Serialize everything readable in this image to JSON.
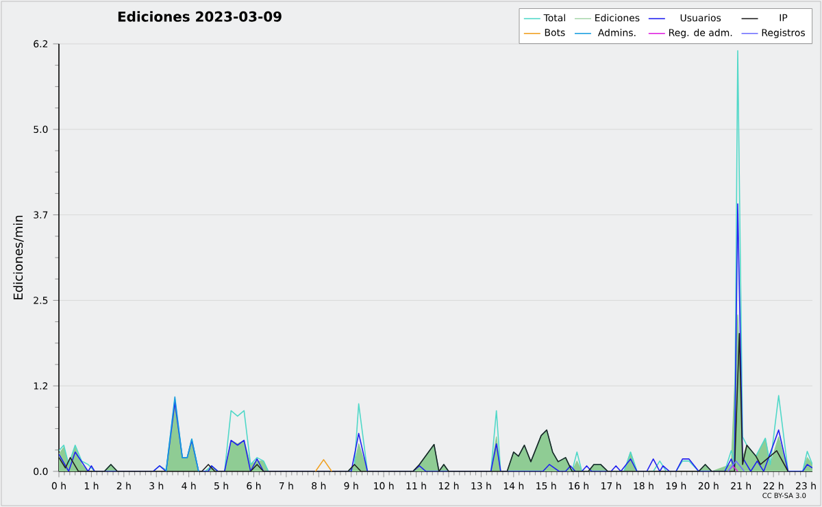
{
  "chart_data": {
    "type": "line",
    "title": "Ediciones 2023-03-09",
    "ylabel": "Ediciones/min",
    "annotations": [
      "CC BY-SA 3.0"
    ],
    "xlim": [
      0,
      23.2
    ],
    "ylim": [
      0,
      6.2
    ],
    "grid": "y",
    "legend": "top right",
    "xticks": [
      {
        "value": 0,
        "label": "0 h"
      },
      {
        "value": 1,
        "label": "1 h"
      },
      {
        "value": 2,
        "label": "2 h"
      },
      {
        "value": 3,
        "label": "3 h"
      },
      {
        "value": 4,
        "label": "4 h"
      },
      {
        "value": 5,
        "label": "5 h"
      },
      {
        "value": 6,
        "label": "6 h"
      },
      {
        "value": 7,
        "label": "7 h"
      },
      {
        "value": 8,
        "label": "8 h"
      },
      {
        "value": 9,
        "label": "9 h"
      },
      {
        "value": 10,
        "label": "10 h"
      },
      {
        "value": 11,
        "label": "11 h"
      },
      {
        "value": 12,
        "label": "12 h"
      },
      {
        "value": 13,
        "label": "13 h"
      },
      {
        "value": 14,
        "label": "14 h"
      },
      {
        "value": 15,
        "label": "15 h"
      },
      {
        "value": 16,
        "label": "16 h"
      },
      {
        "value": 17,
        "label": "17 h"
      },
      {
        "value": 18,
        "label": "18 h"
      },
      {
        "value": 19,
        "label": "19 h"
      },
      {
        "value": 20,
        "label": "20 h"
      },
      {
        "value": 21,
        "label": "21 h"
      },
      {
        "value": 22,
        "label": "22 h"
      },
      {
        "value": 23,
        "label": "23 h"
      }
    ],
    "yticks": [
      {
        "value": 0,
        "label": "0.0"
      },
      {
        "value": 1.24,
        "label": "1.2"
      },
      {
        "value": 2.48,
        "label": "2.5"
      },
      {
        "value": 3.72,
        "label": "3.7"
      },
      {
        "value": 4.96,
        "label": "5.0"
      },
      {
        "value": 6.2,
        "label": "6.2"
      }
    ],
    "series": [
      {
        "name": "Total",
        "type": "line",
        "color": "#50d8c8",
        "x": [
          0,
          0.15,
          0.3,
          0.5,
          0.7,
          0.9,
          1.1,
          1.4,
          1.6,
          1.8,
          2.9,
          3.1,
          3.3,
          3.57,
          3.8,
          3.95,
          4.09,
          4.3,
          4.5,
          4.7,
          4.9,
          5.1,
          5.3,
          5.5,
          5.7,
          5.9,
          6.1,
          6.3,
          6.45,
          7.9,
          8.4,
          8.9,
          9.1,
          9.23,
          9.5,
          10.9,
          11.1,
          11.55,
          11.7,
          11.85,
          12.0,
          13.3,
          13.47,
          13.6,
          13.8,
          14.0,
          14.15,
          14.33,
          14.53,
          14.85,
          15.02,
          15.2,
          15.37,
          15.6,
          15.8,
          15.95,
          16.1,
          16.3,
          16.47,
          16.68,
          16.9,
          17.4,
          17.6,
          17.8,
          18.3,
          18.5,
          18.7,
          19.0,
          19.2,
          19.4,
          19.7,
          19.9,
          20.1,
          20.5,
          20.7,
          20.8,
          20.9,
          21.05,
          21.18,
          21.46,
          21.75,
          21.9,
          22.16,
          22.45,
          22.9,
          23.04,
          23.2
        ],
        "values": [
          0.3,
          0.38,
          0.1,
          0.38,
          0.15,
          0.1,
          0,
          0,
          0.1,
          0,
          0,
          0.08,
          0.02,
          1.05,
          0.2,
          0.2,
          0.47,
          0,
          0,
          0.08,
          0,
          0,
          0.88,
          0.8,
          0.88,
          0.1,
          0.2,
          0.15,
          0,
          0,
          0,
          0,
          0.1,
          0.98,
          0,
          0,
          0.1,
          0.39,
          0,
          0.1,
          0,
          0,
          0.88,
          0,
          0,
          0.28,
          0.22,
          0.38,
          0.14,
          0.52,
          0.6,
          0.28,
          0.14,
          0.2,
          0,
          0.28,
          0,
          0,
          0.1,
          0.1,
          0,
          0,
          0.28,
          0,
          0,
          0.15,
          0,
          0,
          0.15,
          0.15,
          0,
          0.1,
          0,
          0,
          0.3,
          0.15,
          6.1,
          0.5,
          0.38,
          0.22,
          0.48,
          0.1,
          1.1,
          0,
          0,
          0.29,
          0.1
        ]
      },
      {
        "name": "Ediciones",
        "type": "area",
        "color": "#8fcc94",
        "x": [
          0,
          0.15,
          0.3,
          0.5,
          0.7,
          0.9,
          1.4,
          1.6,
          1.8,
          3.3,
          3.57,
          3.8,
          3.95,
          4.09,
          4.3,
          4.5,
          4.7,
          4.9,
          5.1,
          5.3,
          5.5,
          5.7,
          5.9,
          6.1,
          6.3,
          6.45,
          8.9,
          9.1,
          9.23,
          9.5,
          10.9,
          11.1,
          11.55,
          11.7,
          11.85,
          12.0,
          13.3,
          13.47,
          13.6,
          13.8,
          14.0,
          14.15,
          14.33,
          14.53,
          14.85,
          15.02,
          15.2,
          15.37,
          15.6,
          15.8,
          15.95,
          16.1,
          16.3,
          16.47,
          16.68,
          16.9,
          17.4,
          17.6,
          17.8,
          19.7,
          19.9,
          20.1,
          20.7,
          20.9,
          21.05,
          21.18,
          21.46,
          21.75,
          21.9,
          22.16,
          22.45,
          22.9,
          23.04,
          23.2
        ],
        "values": [
          0.25,
          0.35,
          0.1,
          0.35,
          0.1,
          0,
          0,
          0.1,
          0,
          0,
          1.0,
          0.2,
          0.2,
          0.45,
          0,
          0,
          0.08,
          0,
          0,
          0.45,
          0.4,
          0.45,
          0.1,
          0.15,
          0.15,
          0,
          0,
          0.1,
          0.4,
          0,
          0,
          0.1,
          0.39,
          0,
          0.1,
          0,
          0,
          0.5,
          0,
          0,
          0.28,
          0.22,
          0.38,
          0.14,
          0.52,
          0.6,
          0.28,
          0.14,
          0.2,
          0,
          0.15,
          0,
          0,
          0.1,
          0.1,
          0,
          0,
          0.28,
          0,
          0,
          0.1,
          0,
          0.1,
          2.27,
          0.2,
          0.38,
          0.22,
          0.48,
          0.1,
          0.5,
          0,
          0,
          0.2,
          0.1
        ]
      },
      {
        "name": "Usuarios",
        "type": "line",
        "color": "#2020f0",
        "x": [
          0,
          0.3,
          0.5,
          0.9,
          1.0,
          1.1,
          2.9,
          3.1,
          3.3,
          3.57,
          3.8,
          3.95,
          4.09,
          4.3,
          4.6,
          4.7,
          4.9,
          5.1,
          5.3,
          5.5,
          5.7,
          5.9,
          6.1,
          6.3,
          9.0,
          9.23,
          9.5,
          10.9,
          11.1,
          11.3,
          13.3,
          13.47,
          13.6,
          14.9,
          15.1,
          15.4,
          15.6,
          15.75,
          15.9,
          16.1,
          16.25,
          16.4,
          17.0,
          17.15,
          17.3,
          17.6,
          17.8,
          18.1,
          18.3,
          18.5,
          18.6,
          18.8,
          19.0,
          19.2,
          19.4,
          19.7,
          20.5,
          20.7,
          20.8,
          20.9,
          21.05,
          21.3,
          21.5,
          21.7,
          22.16,
          22.45,
          22.9,
          23.04,
          23.2
        ],
        "values": [
          0.25,
          0,
          0.28,
          0,
          0.08,
          0,
          0,
          0.08,
          0,
          1.0,
          0.2,
          0.2,
          0.45,
          0,
          0,
          0.08,
          0,
          0,
          0.45,
          0.38,
          0.45,
          0,
          0.18,
          0,
          0,
          0.55,
          0,
          0,
          0.08,
          0,
          0,
          0.4,
          0,
          0,
          0.1,
          0,
          0,
          0.08,
          0,
          0,
          0.08,
          0,
          0,
          0.08,
          0,
          0.18,
          0,
          0,
          0.18,
          0,
          0.08,
          0,
          0,
          0.18,
          0.18,
          0,
          0,
          0.18,
          0.05,
          3.88,
          0.2,
          0,
          0.15,
          0,
          0.6,
          0,
          0,
          0.1,
          0.05
        ]
      },
      {
        "name": "IP",
        "type": "line",
        "color": "#202020",
        "x": [
          0,
          0.2,
          0.35,
          0.6,
          1.4,
          1.6,
          1.8,
          4.4,
          4.6,
          4.8,
          5.9,
          6.1,
          6.3,
          8.9,
          9.1,
          9.3,
          10.9,
          11.1,
          11.55,
          11.7,
          11.85,
          12.0,
          13.8,
          14.0,
          14.15,
          14.33,
          14.53,
          14.85,
          15.02,
          15.2,
          15.37,
          15.6,
          15.8,
          16.3,
          16.47,
          16.68,
          16.9,
          19.7,
          19.9,
          20.1,
          20.8,
          20.95,
          21.05,
          21.18,
          21.46,
          21.6,
          22.1,
          22.45
        ],
        "values": [
          0.2,
          0.05,
          0.2,
          0,
          0,
          0.1,
          0,
          0,
          0.1,
          0,
          0,
          0.1,
          0,
          0,
          0.1,
          0,
          0,
          0.1,
          0.39,
          0,
          0.1,
          0,
          0,
          0.28,
          0.22,
          0.38,
          0.14,
          0.52,
          0.6,
          0.28,
          0.14,
          0.2,
          0,
          0,
          0.1,
          0.1,
          0,
          0,
          0.1,
          0,
          0,
          2.0,
          0.1,
          0.38,
          0.22,
          0.1,
          0.3,
          0
        ]
      },
      {
        "name": "Bots",
        "type": "line",
        "color": "#f0a020",
        "x": [
          7.9,
          8.15,
          8.4
        ],
        "values": [
          0,
          0.17,
          0
        ]
      },
      {
        "name": "Admins.",
        "type": "line",
        "color": "#1a9ee0",
        "x": [
          3.3,
          3.57,
          3.8,
          3.95,
          4.09,
          4.3
        ],
        "values": [
          0,
          1.08,
          0.2,
          0.2,
          0.47,
          0
        ]
      },
      {
        "name": "Reg. de adm.",
        "type": "line",
        "color": "#e020e0",
        "x": [
          20.6,
          20.75,
          20.9
        ],
        "values": [
          0,
          0.08,
          0
        ]
      },
      {
        "name": "Registros",
        "type": "line",
        "color": "#7070ff",
        "x": [
          20.6,
          20.85,
          21.1
        ],
        "values": [
          0,
          0.15,
          0
        ]
      }
    ]
  }
}
